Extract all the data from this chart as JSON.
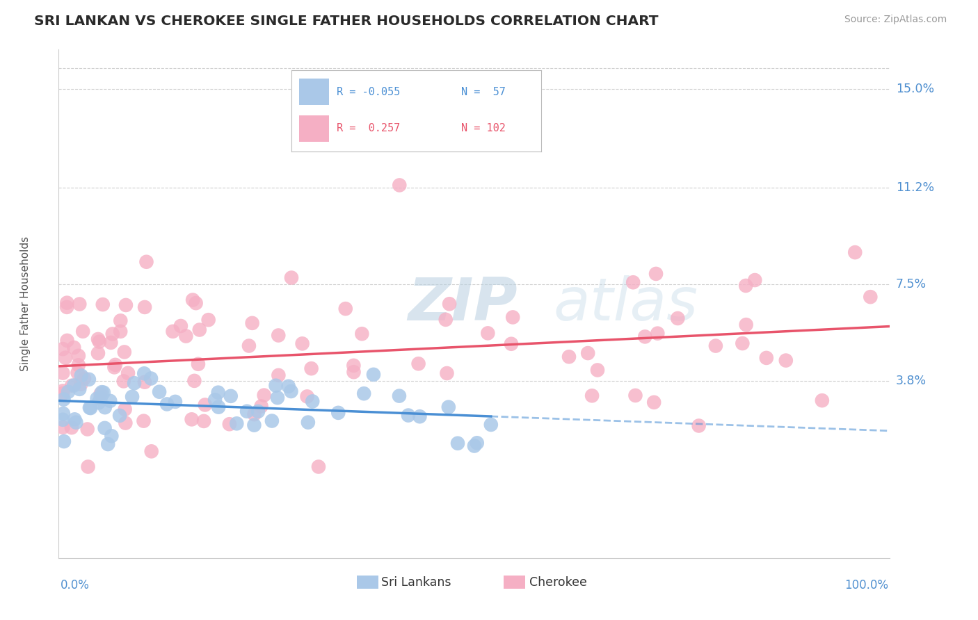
{
  "title": "SRI LANKAN VS CHEROKEE SINGLE FATHER HOUSEHOLDS CORRELATION CHART",
  "source": "Source: ZipAtlas.com",
  "ylabel": "Single Father Households",
  "ytick_labels": [
    "3.8%",
    "7.5%",
    "11.2%",
    "15.0%"
  ],
  "ytick_values": [
    0.038,
    0.075,
    0.112,
    0.15
  ],
  "xmin": 0.0,
  "xmax": 1.0,
  "ymin": -0.03,
  "ymax": 0.165,
  "sri_lankan_R": -0.055,
  "sri_lankan_N": 57,
  "cherokee_R": 0.257,
  "cherokee_N": 102,
  "sri_lankan_color": "#aac8e8",
  "cherokee_color": "#f5afc4",
  "sri_lankan_line_color": "#4a8fd4",
  "cherokee_line_color": "#e8546b",
  "background_color": "#ffffff",
  "grid_color": "#bbbbbb",
  "title_color": "#2a2a2a",
  "ytick_color": "#5090d0",
  "source_color": "#999999",
  "watermark_zip_color": "#c5d8ea",
  "watermark_atlas_color": "#d0e0ec"
}
